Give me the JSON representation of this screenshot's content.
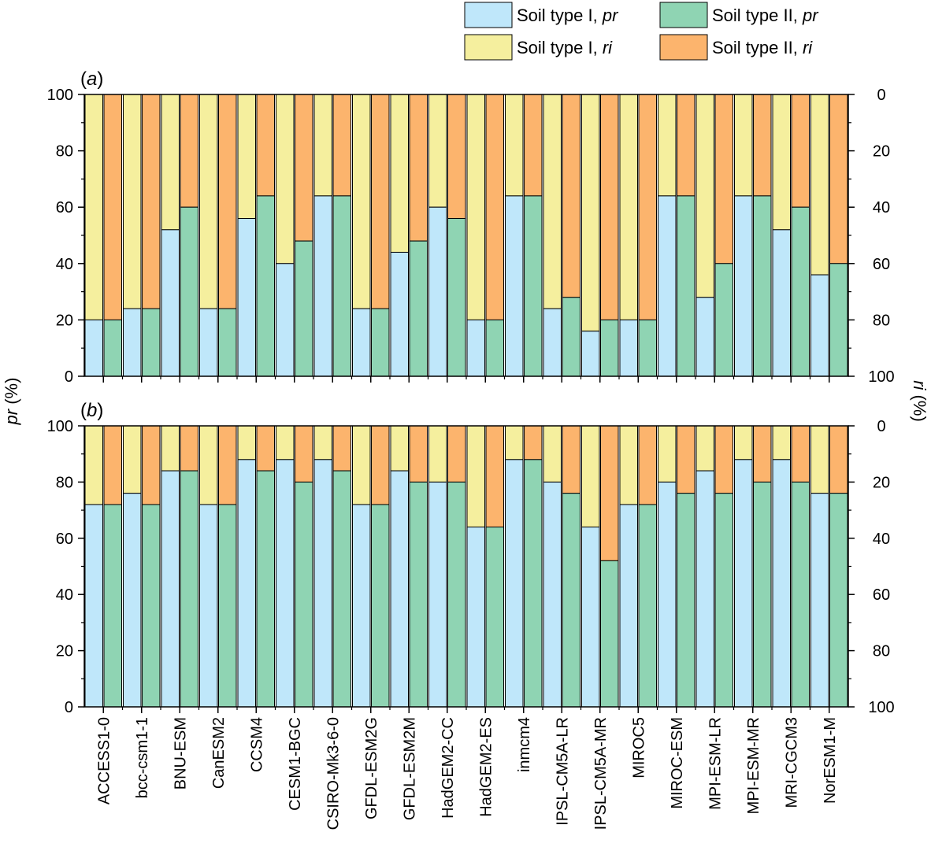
{
  "chart_data": {
    "type": "bar",
    "stacked": true,
    "categories": [
      "ACCESS1-0",
      "bcc-csm1-1",
      "BNU-ESM",
      "CanESM2",
      "CCSM4",
      "CESM1-BGC",
      "CSIRO-Mk3-6-0",
      "GFDL-ESM2G",
      "GFDL-ESM2M",
      "HadGEM2-CC",
      "HadGEM2-ES",
      "inmcm4",
      "IPSL-CM5A-LR",
      "IPSL-CM5A-MR",
      "MIROC5",
      "MIROC-ESM",
      "MPI-ESM-LR",
      "MPI-ESM-MR",
      "MRI-CGCM3",
      "NorESM1-M"
    ],
    "legend": [
      {
        "key": "I_pr",
        "label_plain": "Soil type I, ",
        "label_italic": "pr",
        "color": "#bfe7fa"
      },
      {
        "key": "II_pr",
        "label_plain": "Soil type II, ",
        "label_italic": "pr",
        "color": "#8fd4b3"
      },
      {
        "key": "I_ri",
        "label_plain": "Soil type I, ",
        "label_italic": "ri",
        "color": "#f5ef9e"
      },
      {
        "key": "II_ri",
        "label_plain": "Soil type II, ",
        "label_italic": "ri",
        "color": "#fcb46d"
      }
    ],
    "y_left": {
      "label_italic": "pr",
      "label_plain": " (%)",
      "ylim": [
        0,
        100
      ],
      "ticks": [
        "0",
        "20",
        "40",
        "60",
        "80",
        "100"
      ]
    },
    "y_right": {
      "label_italic": "ri",
      "label_plain": " (%)",
      "ylim": [
        100,
        0
      ],
      "ticks": [
        "0",
        "20",
        "40",
        "60",
        "80",
        "100"
      ]
    },
    "panels": [
      {
        "label": "a",
        "soil_I_pr": [
          20,
          24,
          52,
          24,
          56,
          40,
          64,
          24,
          44,
          60,
          20,
          64,
          24,
          16,
          20,
          64,
          28,
          64,
          52,
          36
        ],
        "soil_II_pr": [
          20,
          24,
          60,
          24,
          64,
          48,
          64,
          24,
          48,
          56,
          20,
          64,
          28,
          20,
          20,
          64,
          40,
          64,
          60,
          40
        ]
      },
      {
        "label": "b",
        "soil_I_pr": [
          72,
          76,
          84,
          72,
          88,
          88,
          88,
          72,
          84,
          80,
          64,
          88,
          80,
          64,
          72,
          80,
          84,
          88,
          88,
          76
        ],
        "soil_II_pr": [
          72,
          72,
          84,
          72,
          84,
          80,
          84,
          72,
          80,
          80,
          64,
          88,
          76,
          52,
          72,
          76,
          76,
          80,
          80,
          76
        ]
      }
    ]
  }
}
